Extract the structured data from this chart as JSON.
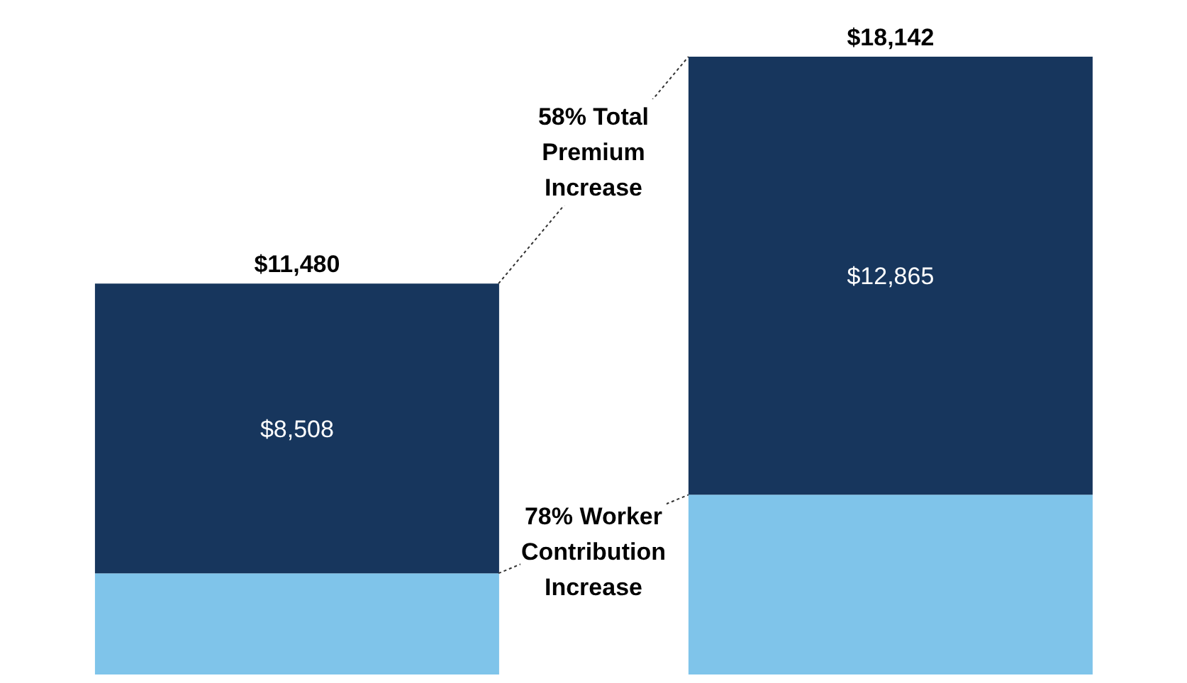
{
  "chart_data": {
    "type": "bar",
    "stacked": true,
    "categories": [
      null,
      null
    ],
    "series": [
      {
        "color": "#7fc4ea",
        "values": [
          2972,
          5277
        ]
      },
      {
        "color": "#17365d",
        "values": [
          8508,
          12865
        ],
        "value_labels": [
          "$8,508",
          "$12,865"
        ]
      }
    ],
    "totals": [
      "$11,480",
      "$18,142"
    ],
    "annotations": [
      "58% Total Premium Increase",
      "78% Worker Contribution Increase"
    ],
    "grid": false,
    "legend": false,
    "tick_labels": false
  }
}
